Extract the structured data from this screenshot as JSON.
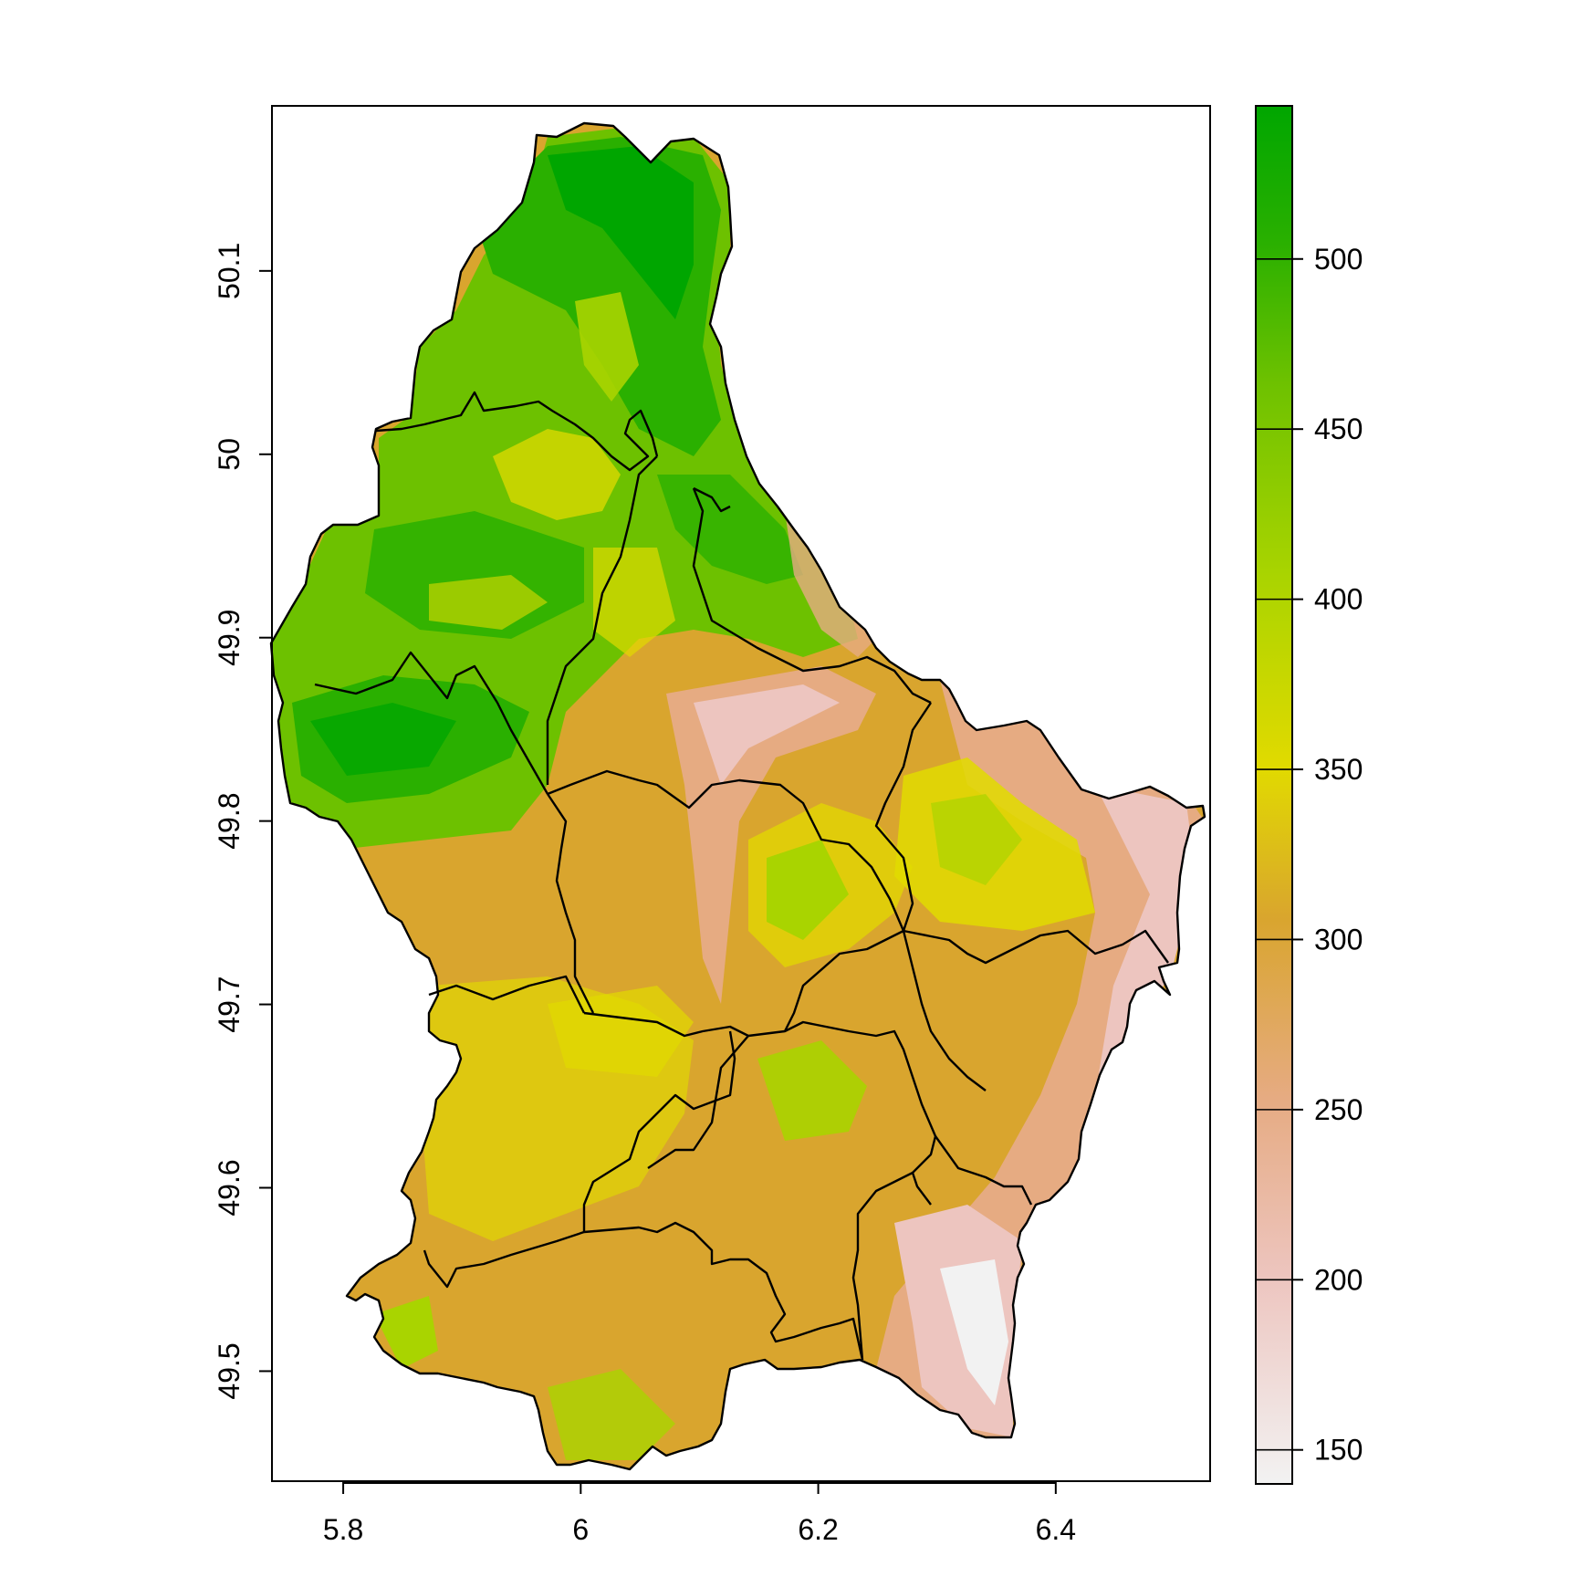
{
  "map": {
    "x_axis": {
      "ticks": [
        5.8,
        6.0,
        6.2,
        6.4
      ],
      "tick_labels": [
        "5.8",
        "6",
        "6.2",
        "6.4"
      ],
      "range": [
        5.74,
        6.53
      ]
    },
    "y_axis": {
      "ticks": [
        49.5,
        49.6,
        49.7,
        49.8,
        49.9,
        50.0,
        50.1
      ],
      "tick_labels": [
        "49.5",
        "49.6",
        "49.7",
        "49.8",
        "49.9",
        "50",
        "50.1"
      ],
      "range": [
        49.44,
        50.19
      ]
    },
    "legend": {
      "placement": "right",
      "min": 140,
      "max": 545,
      "ticks": [
        150,
        200,
        250,
        300,
        350,
        400,
        450,
        500
      ],
      "tick_labels": [
        "150",
        "200",
        "250",
        "300",
        "350",
        "400",
        "450",
        "500"
      ],
      "colors": [
        "#F2F2F2",
        "#EDC5BF",
        "#E6AB82",
        "#D9A52E",
        "#E1DA00",
        "#A9D400",
        "#6DC100",
        "#2AB000",
        "#00A600"
      ]
    }
  }
}
